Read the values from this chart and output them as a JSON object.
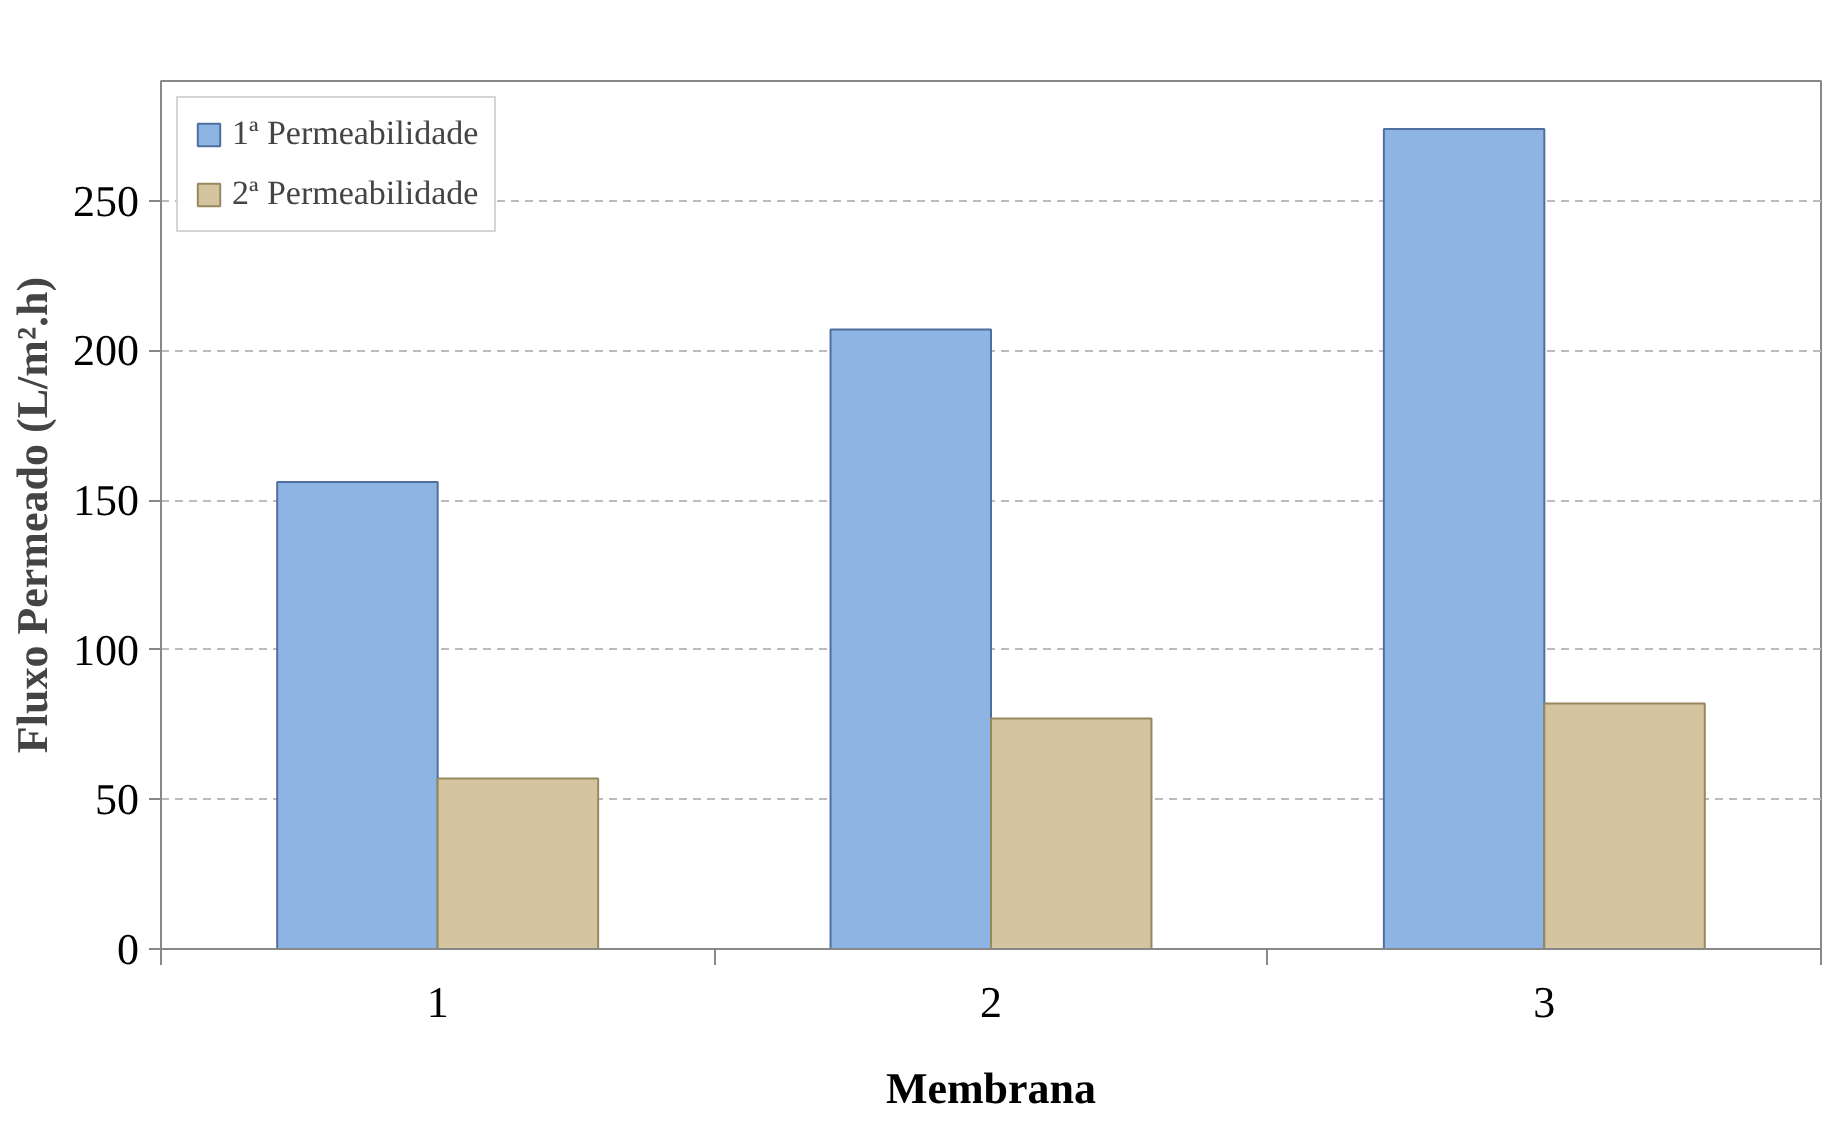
{
  "chart_data": {
    "type": "bar",
    "xlabel": "Membrana",
    "ylabel": "Fluxo Permeado (L/m².h)",
    "categories": [
      "1",
      "2",
      "3"
    ],
    "series": [
      {
        "name": "1ª Permeabilidade",
        "color": "#8eb4e3",
        "values": [
          156,
          207,
          274
        ]
      },
      {
        "name": "2ª Permeabilidade",
        "color": "#d4c5a0",
        "values": [
          57,
          77,
          82
        ]
      }
    ],
    "ylim": [
      0,
      290
    ],
    "yticks": [
      0,
      50,
      100,
      150,
      200,
      250
    ],
    "grid": "y",
    "legend": "top left"
  }
}
